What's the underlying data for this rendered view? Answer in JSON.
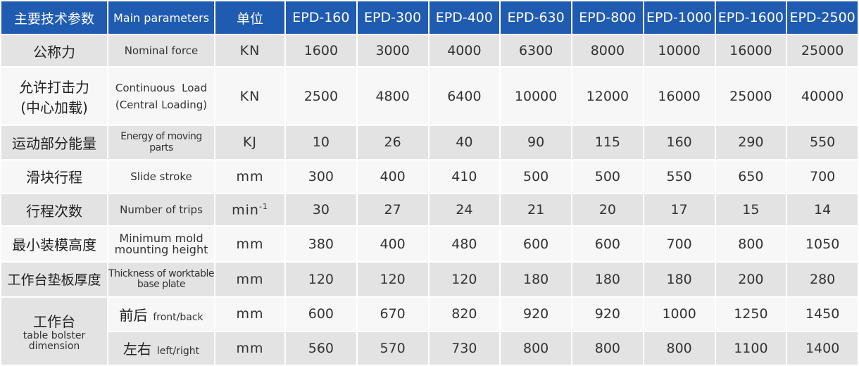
{
  "header": {
    "param_cn": "主要技术参数",
    "param_en": "Main parameters",
    "unit": "单位",
    "models": [
      "EPD-160",
      "EPD-300",
      "EPD-400",
      "EPD-630",
      "EPD-800",
      "EPD-1000",
      "EPD-1600",
      "EPD-2500"
    ]
  },
  "rows": [
    {
      "cn": "公称力",
      "en": "Nominal force",
      "unit": "KN",
      "values": [
        "1600",
        "3000",
        "4000",
        "6300",
        "8000",
        "10000",
        "16000",
        "25000"
      ]
    },
    {
      "cn_line1": "允许打击力",
      "cn_line2": "(中心加载)",
      "en_line1": "Continuous  Load",
      "en_line2": "(Central Loading)",
      "unit": "KN",
      "values": [
        "2500",
        "4800",
        "6400",
        "10000",
        "12000",
        "16000",
        "25000",
        "40000"
      ]
    },
    {
      "cn": "运动部分能量",
      "en": "Energy of moving parts",
      "unit": "KJ",
      "values": [
        "10",
        "26",
        "40",
        "90",
        "115",
        "160",
        "290",
        "550"
      ]
    },
    {
      "cn": "滑块行程",
      "en": "Slide stroke",
      "unit": "mm",
      "values": [
        "300",
        "400",
        "410",
        "500",
        "500",
        "550",
        "650",
        "700"
      ]
    },
    {
      "cn": "行程次数",
      "en": "Number of trips",
      "unit": "min",
      "unit_sup": "-1",
      "values": [
        "30",
        "27",
        "24",
        "21",
        "20",
        "17",
        "15",
        "14"
      ]
    },
    {
      "cn": "最小装模高度",
      "en_line1": "Minimum mold",
      "en_line2": "mounting height",
      "unit": "mm",
      "values": [
        "380",
        "400",
        "480",
        "600",
        "600",
        "700",
        "800",
        "1050"
      ]
    },
    {
      "cn": "工作台垫板厚度",
      "en_line1": "Thickness of worktable",
      "en_line2": "base plate",
      "unit": "mm",
      "values": [
        "120",
        "120",
        "120",
        "180",
        "180",
        "180",
        "200",
        "280"
      ]
    }
  ],
  "dimension": {
    "cn": "工作台",
    "en_line1": "table bolster",
    "en_line2": "dimension",
    "front_back": {
      "cn": "前后",
      "en": "front/back",
      "unit": "mm",
      "values": [
        "600",
        "670",
        "820",
        "920",
        "920",
        "1000",
        "1250",
        "1450"
      ]
    },
    "left_right": {
      "cn": "左右",
      "en": "left/right",
      "unit": "mm",
      "values": [
        "560",
        "570",
        "730",
        "800",
        "800",
        "800",
        "1100",
        "1400"
      ]
    }
  }
}
